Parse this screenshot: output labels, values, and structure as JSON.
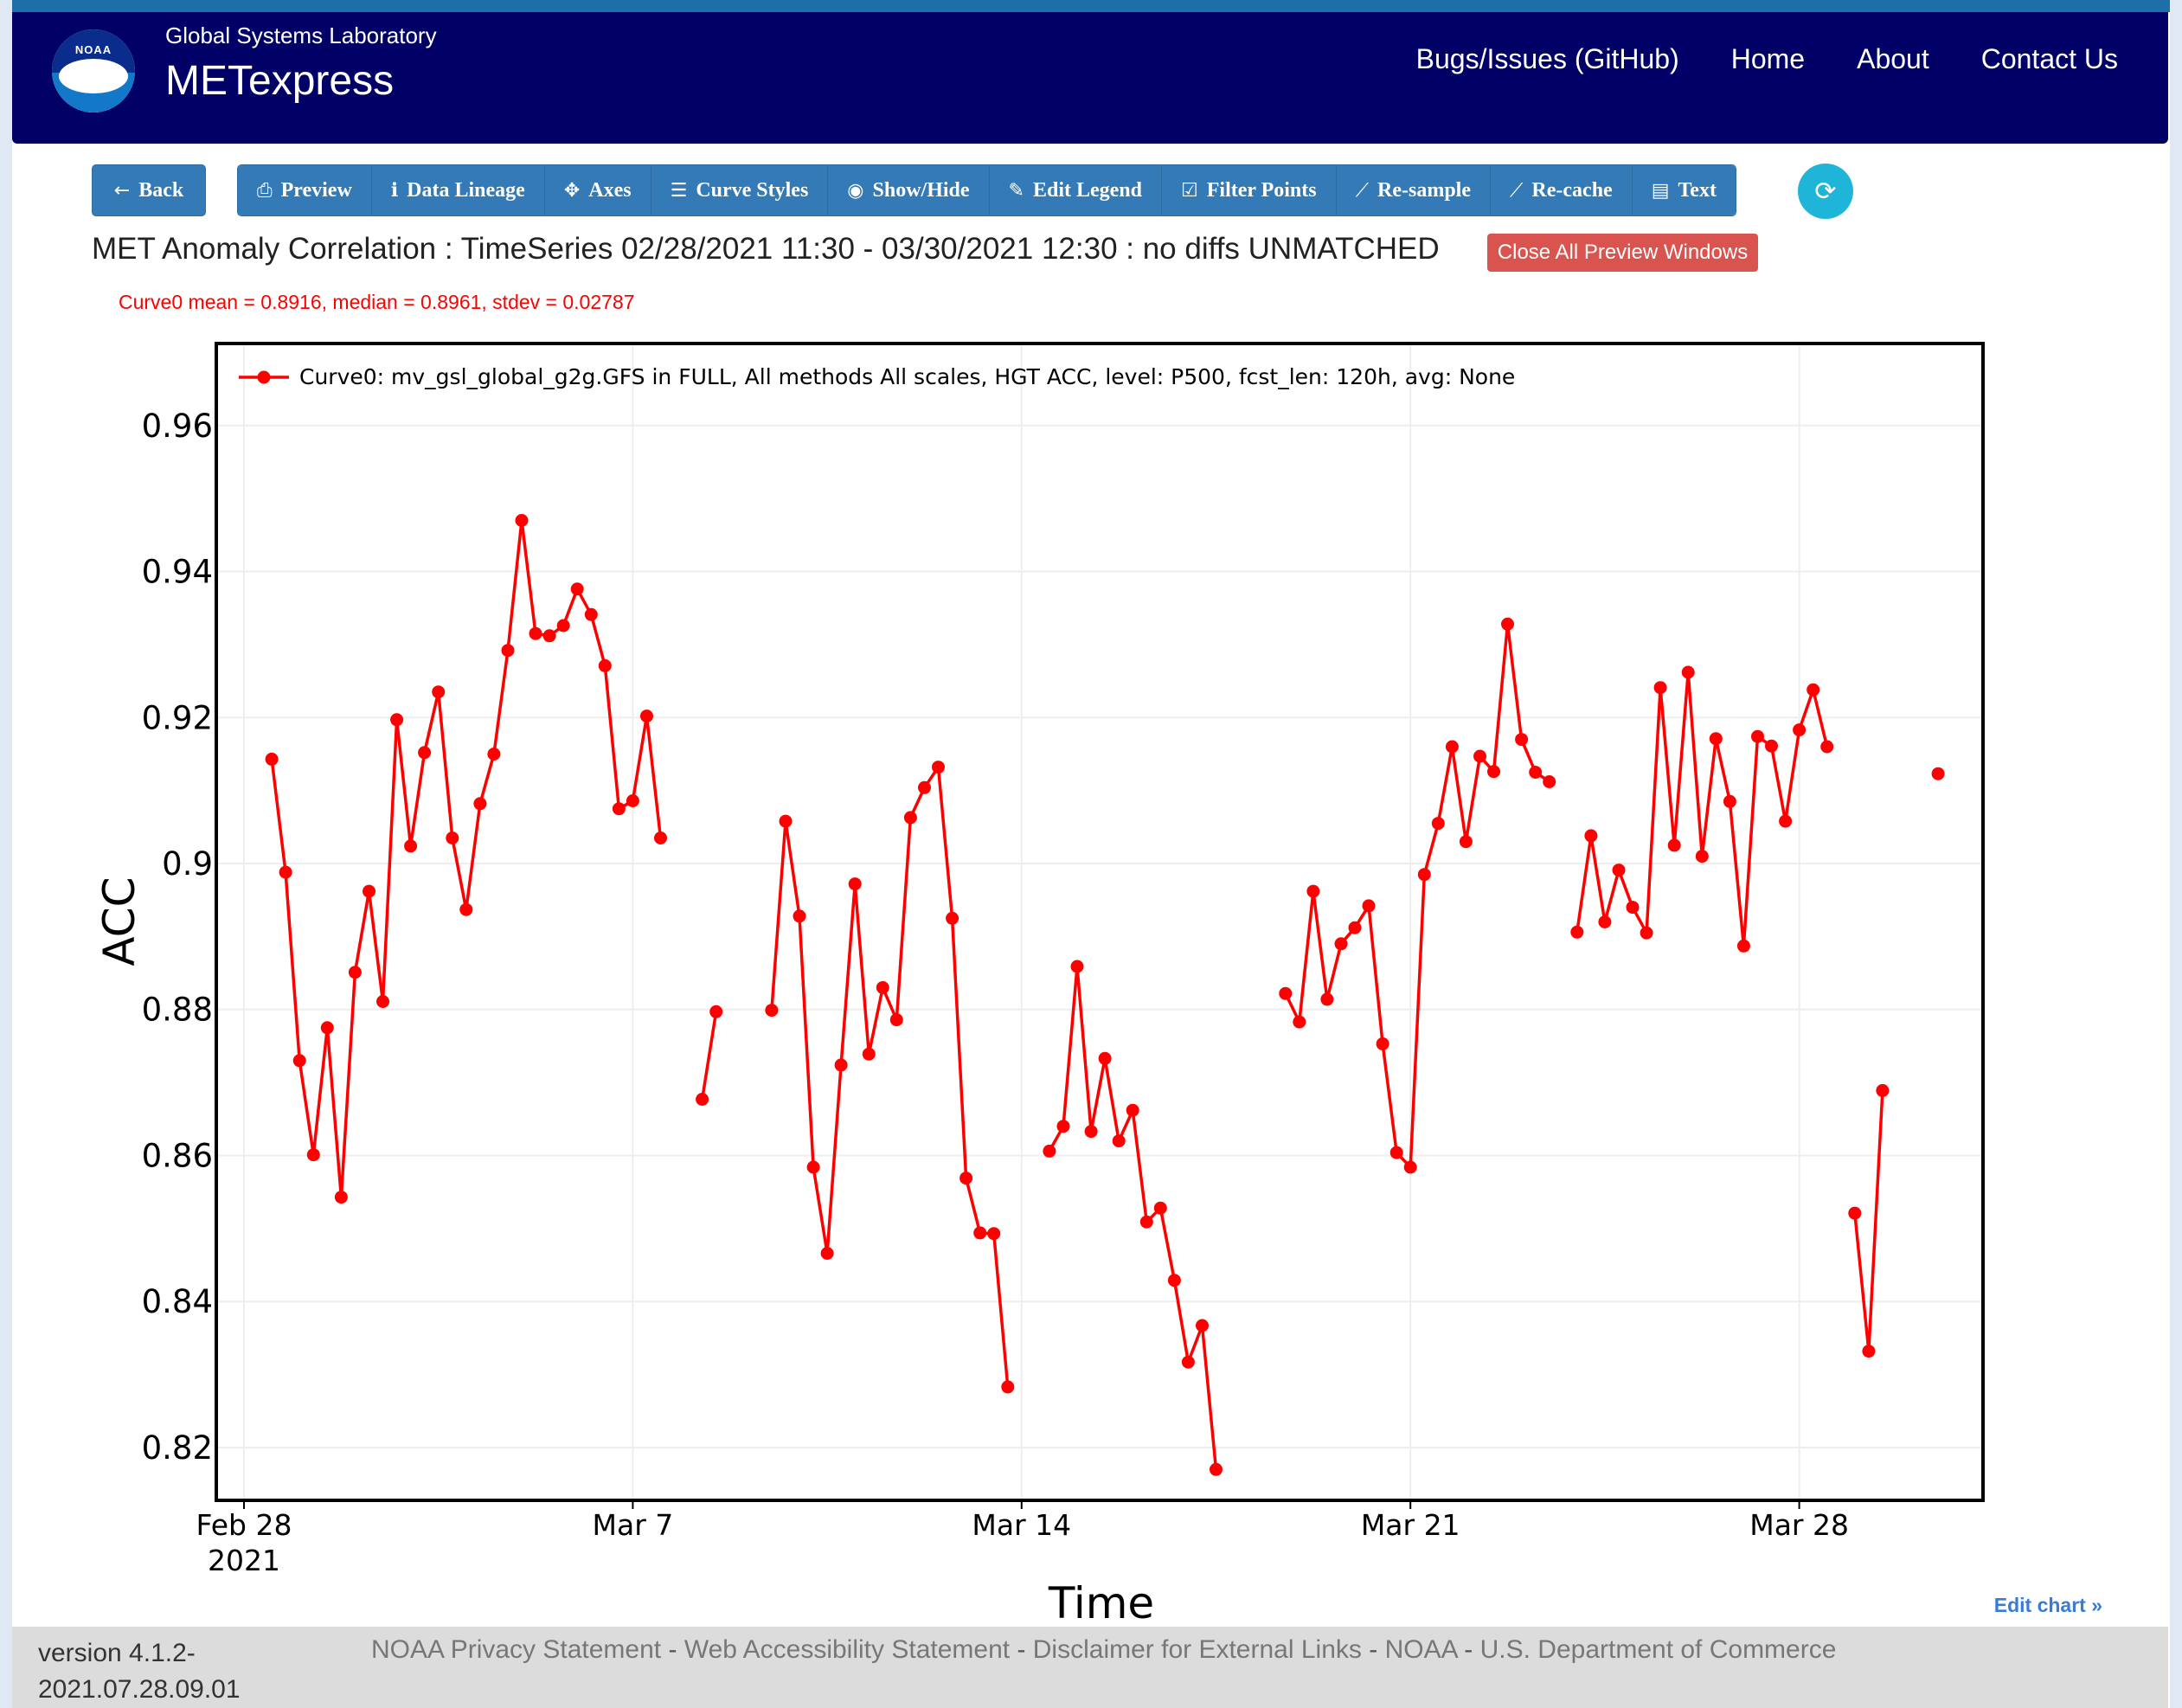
{
  "header": {
    "org": "Global Systems Laboratory",
    "app": "METexpress",
    "logo_text": "NOAA",
    "nav": [
      "Bugs/Issues (GitHub)",
      "Home",
      "About",
      "Contact Us"
    ]
  },
  "toolbar": {
    "back": "Back",
    "buttons": [
      "Preview",
      "Data Lineage",
      "Axes",
      "Curve Styles",
      "Show/Hide",
      "Edit Legend",
      "Filter Points",
      "Re-sample",
      "Re-cache",
      "Text"
    ]
  },
  "plot": {
    "title": "MET Anomaly Correlation : TimeSeries 02/28/2021 11:30 - 03/30/2021 12:30 : no diffs UNMATCHED",
    "close_all": "Close All Preview Windows",
    "stats": "Curve0 mean = 0.8916, median = 0.8961, stdev = 0.02787",
    "edit_chart": "Edit chart »"
  },
  "footer": {
    "version": "version 4.1.2-2021.07.28.09.01",
    "links": [
      "NOAA Privacy Statement",
      "Web Accessibility Statement",
      "Disclaimer for External Links",
      "NOAA",
      "U.S. Department of Commerce"
    ]
  },
  "colors": {
    "series": "#ff0000",
    "navbar": "#000066",
    "button": "#337ab7",
    "danger": "#d9534f"
  },
  "chart_data": {
    "type": "line",
    "xlabel": "Time",
    "ylabel": "ACC",
    "x_start": "2021-02-28T12:00",
    "x_tick_labels": [
      [
        "Feb 28",
        "2021"
      ],
      [
        "Mar 7"
      ],
      [
        "Mar 14"
      ],
      [
        "Mar 21"
      ],
      [
        "Mar 28"
      ]
    ],
    "y_tick_labels": [
      "0.82",
      "0.84",
      "0.86",
      "0.88",
      "0.9",
      "0.92",
      "0.94",
      "0.96"
    ],
    "ylim": [
      0.813,
      0.971
    ],
    "grid": true,
    "legend_position": "top-left",
    "series": [
      {
        "name": "Curve0: mv_gsl_global_g2g.GFS in FULL, All methods All scales, HGT ACC, level: P500, fcst_len: 120h, avg: None",
        "color": "#ff0000",
        "points": [
          [
            0.5,
            0.9143
          ],
          [
            0.75,
            0.8988
          ],
          [
            1.0,
            0.873
          ],
          [
            1.25,
            0.8601
          ],
          [
            1.5,
            0.8775
          ],
          [
            1.75,
            0.8543
          ],
          [
            2.0,
            0.8851
          ],
          [
            2.25,
            0.8962
          ],
          [
            2.5,
            0.8811
          ],
          [
            2.75,
            0.9197
          ],
          [
            3.0,
            0.9024
          ],
          [
            3.25,
            0.9152
          ],
          [
            3.5,
            0.9235
          ],
          [
            3.75,
            0.9035
          ],
          [
            4.0,
            0.8937
          ],
          [
            4.25,
            0.9082
          ],
          [
            4.5,
            0.915
          ],
          [
            4.75,
            0.9292
          ],
          [
            5.0,
            0.947
          ],
          [
            5.25,
            0.9315
          ],
          [
            5.5,
            0.9312
          ],
          [
            5.75,
            0.9326
          ],
          [
            6.0,
            0.9376
          ],
          [
            6.25,
            0.9341
          ],
          [
            6.5,
            0.9271
          ],
          [
            6.75,
            0.9075
          ],
          [
            7.0,
            0.9086
          ],
          [
            7.25,
            0.9202
          ],
          [
            7.5,
            0.9035
          ],
          null,
          [
            8.25,
            0.8677
          ],
          [
            8.5,
            0.8797
          ],
          null,
          [
            9.5,
            0.8799
          ],
          [
            9.75,
            0.9058
          ],
          [
            10.0,
            0.8928
          ],
          [
            10.25,
            0.8584
          ],
          [
            10.5,
            0.8466
          ],
          [
            10.75,
            0.8724
          ],
          [
            11.0,
            0.8972
          ],
          [
            11.25,
            0.8739
          ],
          [
            11.5,
            0.883
          ],
          [
            11.75,
            0.8786
          ],
          [
            12.0,
            0.9063
          ],
          [
            12.25,
            0.9104
          ],
          [
            12.5,
            0.9132
          ],
          [
            12.75,
            0.8925
          ],
          [
            13.0,
            0.8569
          ],
          [
            13.25,
            0.8494
          ],
          [
            13.5,
            0.8493
          ],
          [
            13.75,
            0.8283
          ],
          null,
          [
            14.5,
            0.8606
          ],
          [
            14.75,
            0.864
          ],
          [
            15.0,
            0.8859
          ],
          [
            15.25,
            0.8633
          ],
          [
            15.5,
            0.8733
          ],
          [
            15.75,
            0.862
          ],
          [
            16.0,
            0.8662
          ],
          [
            16.25,
            0.8509
          ],
          [
            16.5,
            0.8528
          ],
          [
            16.75,
            0.8429
          ],
          [
            17.0,
            0.8317
          ],
          [
            17.25,
            0.8367
          ],
          [
            17.5,
            0.817
          ],
          null,
          [
            18.75,
            0.8822
          ],
          [
            19.0,
            0.8783
          ],
          [
            19.25,
            0.8962
          ],
          [
            19.5,
            0.8814
          ],
          [
            19.75,
            0.889
          ],
          [
            20.0,
            0.8912
          ],
          [
            20.25,
            0.8942
          ],
          [
            20.5,
            0.8753
          ],
          [
            20.75,
            0.8604
          ],
          [
            21.0,
            0.8584
          ],
          [
            21.25,
            0.8985
          ],
          [
            21.5,
            0.9055
          ],
          [
            21.75,
            0.916
          ],
          [
            22.0,
            0.903
          ],
          [
            22.25,
            0.9147
          ],
          [
            22.5,
            0.9126
          ],
          [
            22.75,
            0.9328
          ],
          [
            23.0,
            0.917
          ],
          [
            23.25,
            0.9125
          ],
          [
            23.5,
            0.9112
          ],
          null,
          [
            24.0,
            0.8906
          ],
          [
            24.25,
            0.9038
          ],
          [
            24.5,
            0.892
          ],
          [
            24.75,
            0.8991
          ],
          [
            25.0,
            0.894
          ],
          [
            25.25,
            0.8905
          ],
          [
            25.5,
            0.9241
          ],
          [
            25.75,
            0.9025
          ],
          [
            26.0,
            0.9262
          ],
          [
            26.25,
            0.901
          ],
          [
            26.5,
            0.9171
          ],
          [
            26.75,
            0.9085
          ],
          [
            27.0,
            0.8887
          ],
          [
            27.25,
            0.9174
          ],
          [
            27.5,
            0.9161
          ],
          [
            27.75,
            0.9058
          ],
          [
            28.0,
            0.9183
          ],
          [
            28.25,
            0.9238
          ],
          [
            28.5,
            0.916
          ],
          null,
          [
            29.0,
            0.8521
          ],
          [
            29.25,
            0.8332
          ],
          [
            29.5,
            0.8689
          ],
          null,
          [
            30.5,
            0.9123
          ]
        ]
      }
    ]
  }
}
